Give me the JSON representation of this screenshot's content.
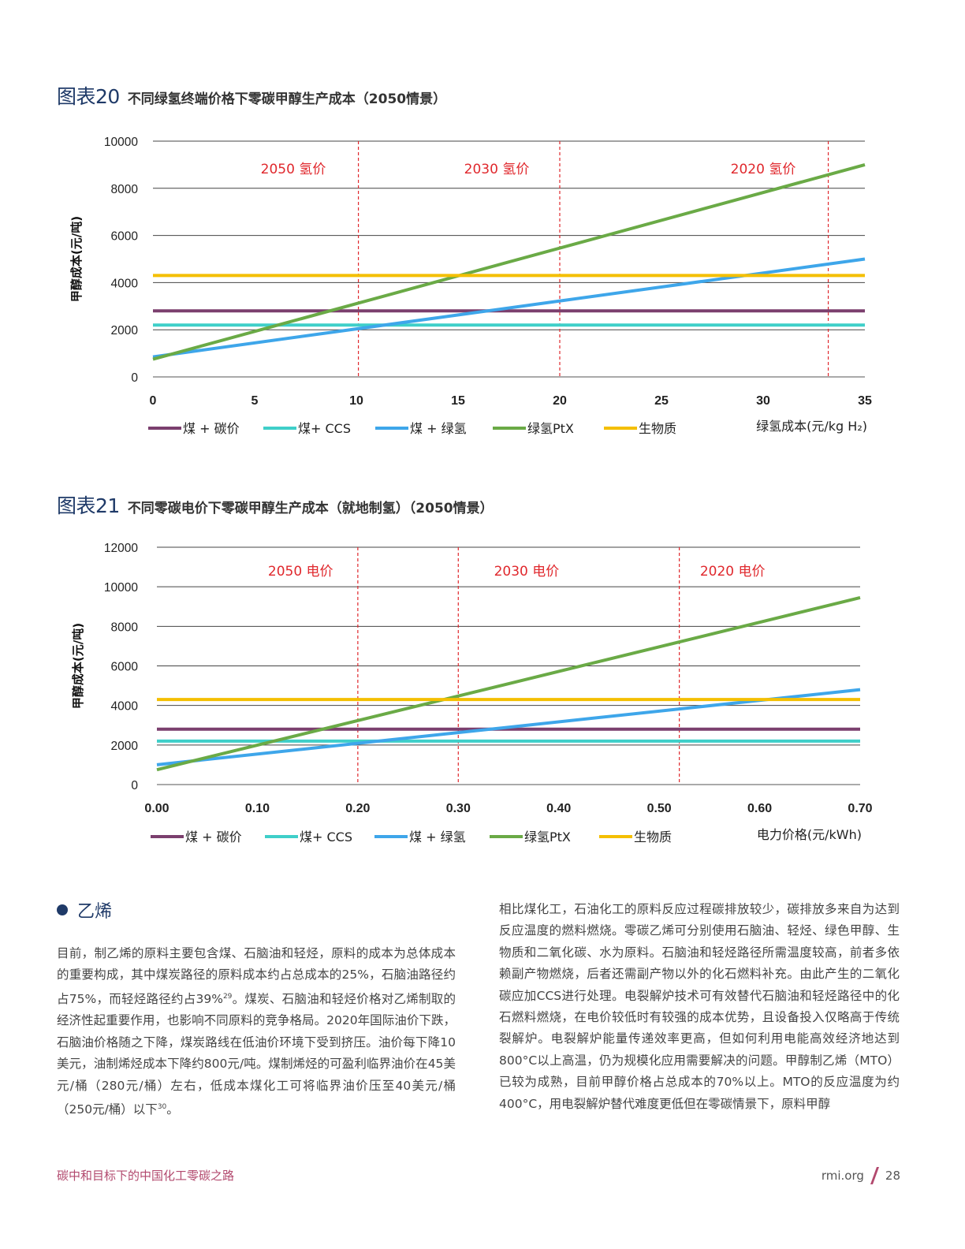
{
  "chart_data": [
    {
      "type": "line",
      "figure_label": "图表20",
      "title": "不同绿氢终端价格下零碳甲醇生产成本（2050情景）",
      "xlabel": "绿氢成本(元/kg H₂)",
      "ylabel": "甲醇成本(元/吨)",
      "xlim": [
        0,
        35
      ],
      "ylim": [
        0,
        10000
      ],
      "x_ticks": [
        0,
        5,
        10,
        15,
        20,
        25,
        30,
        35
      ],
      "x_tick_labels": [
        "0",
        "5",
        "10",
        "15",
        "20",
        "25",
        "30",
        "35"
      ],
      "y_ticks": [
        0,
        2000,
        4000,
        6000,
        8000,
        10000
      ],
      "y_tick_labels": [
        "0",
        "2000",
        "4000",
        "6000",
        "8000",
        "10000"
      ],
      "vlines": [
        10.1,
        20,
        33.2
      ],
      "annotations": [
        {
          "text": "2050 氢价",
          "x": 6.9
        },
        {
          "text": "2030 氢价",
          "x": 16.9
        },
        {
          "text": "2020 氢价",
          "x": 30.0
        }
      ],
      "series": [
        {
          "name": "煤 + 碳价",
          "color": "#7b3f6e",
          "x": [
            0,
            35
          ],
          "y": [
            2800,
            2800
          ]
        },
        {
          "name": "煤+ CCS",
          "color": "#3fcfc9",
          "x": [
            0,
            35
          ],
          "y": [
            2200,
            2200
          ]
        },
        {
          "name": "煤 + 绿氢",
          "color": "#3ea6ea",
          "x": [
            0,
            35
          ],
          "y": [
            850,
            5000
          ]
        },
        {
          "name": "绿氢PtX",
          "color": "#6aaa46",
          "x": [
            0,
            35
          ],
          "y": [
            750,
            9000
          ]
        },
        {
          "name": "生物质",
          "color": "#f4bf00",
          "x": [
            0,
            35
          ],
          "y": [
            4300,
            4300
          ]
        }
      ]
    },
    {
      "type": "line",
      "figure_label": "图表21",
      "title": "不同零碳电价下零碳甲醇生产成本（就地制氢）（2050情景）",
      "xlabel": "电力价格(元/kWh)",
      "ylabel": "甲醇成本(元/吨)",
      "xlim": [
        0,
        0.7
      ],
      "ylim": [
        0,
        12000
      ],
      "x_ticks": [
        0,
        0.1,
        0.2,
        0.3,
        0.4,
        0.5,
        0.6,
        0.7
      ],
      "x_tick_labels": [
        "0.00",
        "0.10",
        "0.20",
        "0.30",
        "0.40",
        "0.50",
        "0.60",
        "0.70"
      ],
      "y_ticks": [
        0,
        2000,
        4000,
        6000,
        8000,
        10000,
        12000
      ],
      "y_tick_labels": [
        "0",
        "2000",
        "4000",
        "6000",
        "8000",
        "10000",
        "12000"
      ],
      "vlines": [
        0.2,
        0.3,
        0.52
      ],
      "annotations": [
        {
          "text": "2050 电价",
          "x": 0.143
        },
        {
          "text": "2030 电价",
          "x": 0.368
        },
        {
          "text": "2020 电价",
          "x": 0.573
        }
      ],
      "series": [
        {
          "name": "煤 + 碳价",
          "color": "#7b3f6e",
          "x": [
            0,
            0.7
          ],
          "y": [
            2800,
            2800
          ]
        },
        {
          "name": "煤+ CCS",
          "color": "#3fcfc9",
          "x": [
            0,
            0.7
          ],
          "y": [
            2200,
            2200
          ]
        },
        {
          "name": "煤 + 绿氢",
          "color": "#3ea6ea",
          "x": [
            0,
            0.7
          ],
          "y": [
            1000,
            4800
          ]
        },
        {
          "name": "绿氢PtX",
          "color": "#6aaa46",
          "x": [
            0,
            0.7
          ],
          "y": [
            750,
            9450
          ]
        },
        {
          "name": "生物质",
          "color": "#f4bf00",
          "x": [
            0,
            0.7
          ],
          "y": [
            4300,
            4300
          ]
        }
      ]
    }
  ],
  "section": {
    "title": "乙烯"
  },
  "text_left": {
    "p1": "目前，制乙烯的原料主要包含煤、石脑油和轻烃，原料的成本为总体成本的重要构成，其中煤炭路径的原料成本约占总成本的25%，石脑油路径约占75%，而轻烃路径约占39%",
    "ref1": "29",
    "p2": "。煤炭、石脑油和轻烃价格对乙烯制取的经济性起重要作用，也影响不同原料的竞争格局。2020年国际油价下跌，石脑油价格随之下降，煤炭路线在低油价环境下受到挤压。油价每下降10美元，油制烯烃成本下降约800元/吨。煤制烯烃的可盈利临界油价在45美元/桶（280元/桶）左右，低成本煤化工可将临界油价压至40美元/桶（250元/桶）以下",
    "ref2": "30",
    "p3": "。"
  },
  "text_right": {
    "p1": "相比煤化工，石油化工的原料反应过程碳排放较少，碳排放多来自为达到反应温度的燃料燃烧。零碳乙烯可分别使用石脑油、轻烃、绿色甲醇、生物质和二氧化碳、水为原料。石脑油和轻烃路径所需温度较高，前者多依赖副产物燃烧，后者还需副产物以外的化石燃料补充。由此产生的二氧化碳应加CCS进行处理。电裂解炉技术可有效替代石脑油和轻烃路径中的化石燃料燃烧，在电价较低时有较强的成本优势，且设备投入仅略高于传统裂解炉。电裂解炉能量传递效率更高，但如何利用电能高效经济地达到800°C以上高温，仍为规模化应用需要解决的问题。甲醇制乙烯（MTO）已较为成熟，目前甲醇价格占总成本的70%以上。MTO的反应温度为约400°C，用电裂解炉替代难度更低但在零碳情景下，原料甲醇"
  },
  "footer": {
    "left": "碳中和目标下的中国化工零碳之路",
    "site": "rmi.org",
    "page": "28"
  }
}
